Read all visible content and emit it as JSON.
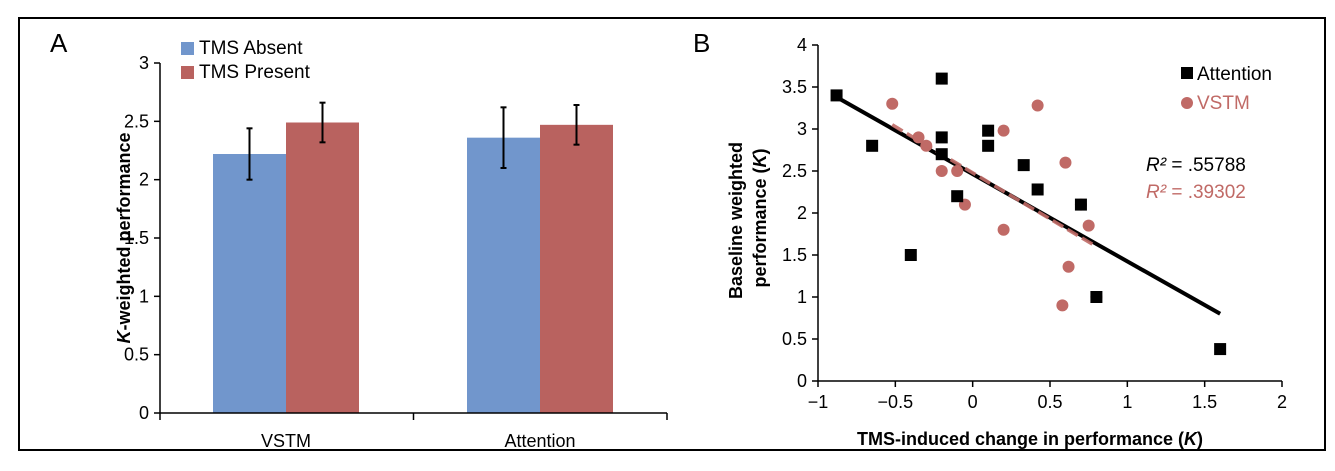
{
  "panels": {
    "a": "A",
    "b": "B"
  },
  "chart_data": [
    {
      "type": "bar",
      "ylabel_prefix": "K",
      "ylabel_rest": "-weighted performance",
      "categories": [
        "VSTM",
        "Attention"
      ],
      "ylim": [
        0,
        3
      ],
      "yticks": [
        0,
        0.5,
        1,
        1.5,
        2,
        2.5,
        3
      ],
      "grid": false,
      "legend_position": "top-left",
      "series": [
        {
          "name": "TMS Absent",
          "color": "#7196cc",
          "values": [
            2.22,
            2.36
          ],
          "errors": [
            0.22,
            0.26
          ]
        },
        {
          "name": "TMS Present",
          "color": "#b9625f",
          "values": [
            2.49,
            2.47
          ],
          "errors": [
            0.17,
            0.17
          ]
        }
      ]
    },
    {
      "type": "scatter",
      "xlabel_main": "TMS-induced change in performance (",
      "xlabel_var": "K",
      "xlabel_close": ")",
      "ylabel_line1": "Baseline weighted",
      "ylabel_line2_main": "performance (",
      "ylabel_line2_var": "K",
      "ylabel_line2_close": ")",
      "xlim": [
        -1,
        2
      ],
      "ylim": [
        0,
        4
      ],
      "xticks": [
        -1,
        -0.5,
        0,
        0.5,
        1,
        1.5,
        2
      ],
      "yticks": [
        0,
        0.5,
        1,
        1.5,
        2,
        2.5,
        3,
        3.5,
        4
      ],
      "grid": false,
      "legend_position": "top-right",
      "series": [
        {
          "name": "Attention",
          "marker": "square",
          "color": "#000000",
          "x": [
            -0.88,
            -0.65,
            -0.2,
            -0.2,
            -0.2,
            -0.1,
            -0.4,
            0.1,
            0.1,
            0.33,
            0.42,
            0.7,
            0.8,
            1.6
          ],
          "y": [
            3.4,
            2.8,
            3.6,
            2.9,
            2.7,
            2.2,
            1.5,
            2.98,
            2.8,
            2.57,
            2.28,
            2.1,
            1.0,
            0.38
          ],
          "trend": {
            "from": [
              -0.9,
              3.4
            ],
            "to": [
              1.6,
              0.8
            ],
            "style": "solid",
            "r2_label": "R²",
            "r2_value": " = .55788"
          }
        },
        {
          "name": "VSTM",
          "marker": "circle",
          "color": "#c06a66",
          "x": [
            -0.52,
            -0.35,
            -0.3,
            -0.2,
            -0.1,
            -0.05,
            0.2,
            0.2,
            0.42,
            0.6,
            0.62,
            0.58,
            0.7,
            0.75,
            0.8
          ],
          "y": [
            3.3,
            2.9,
            2.8,
            2.5,
            2.5,
            2.1,
            2.98,
            1.8,
            3.28,
            2.6,
            1.36,
            0.9,
            2.1,
            1.85,
            1.0
          ],
          "trend": {
            "from": [
              -0.52,
              3.05
            ],
            "to": [
              0.8,
              1.6
            ],
            "style": "dashed",
            "r2_label": "R²",
            "r2_value": " = .39302"
          }
        }
      ]
    }
  ]
}
